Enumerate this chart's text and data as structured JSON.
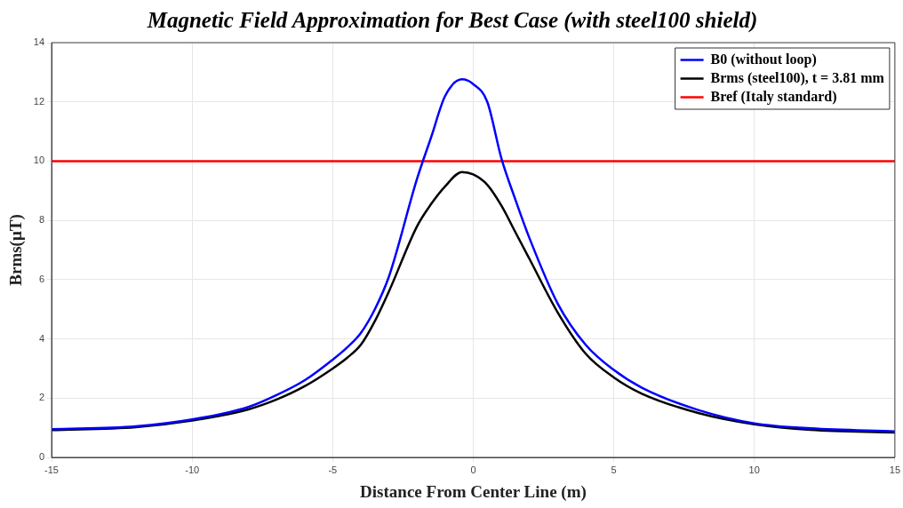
{
  "chart_data": {
    "type": "line",
    "title": "Magnetic Field Approximation for Best Case (with steel100 shield)",
    "xlabel": "Distance From Center Line (m)",
    "ylabel": "Brms(μT)",
    "x": [
      -15,
      -12,
      -10,
      -8,
      -7,
      -6,
      -5,
      -4.5,
      -4,
      -3.5,
      -3,
      -2,
      -1.5,
      -1,
      -0.4,
      0,
      0.5,
      1,
      1.5,
      2,
      3,
      4,
      5,
      6,
      8,
      10,
      12,
      15
    ],
    "series": [
      {
        "name": "B0 (without loop)",
        "color": "#0000ff",
        "values": [
          0.95,
          1.05,
          1.28,
          1.7,
          2.1,
          2.6,
          3.3,
          3.7,
          4.2,
          5.0,
          6.1,
          9.4,
          10.8,
          12.2,
          12.76,
          12.6,
          12.0,
          10.1,
          8.7,
          7.4,
          5.2,
          3.8,
          2.95,
          2.35,
          1.6,
          1.15,
          0.98,
          0.88
        ]
      },
      {
        "name": "Brms (steel100), t = 3.81 mm",
        "color": "#000000",
        "values": [
          0.92,
          1.02,
          1.24,
          1.62,
          1.95,
          2.4,
          3.0,
          3.35,
          3.8,
          4.6,
          5.6,
          7.8,
          8.55,
          9.15,
          9.63,
          9.55,
          9.2,
          8.5,
          7.6,
          6.7,
          4.9,
          3.5,
          2.7,
          2.15,
          1.5,
          1.12,
          0.93,
          0.84
        ]
      },
      {
        "name": "Bref (Italy standard)",
        "color": "#ff0000",
        "x": [
          -15,
          15
        ],
        "values": [
          10,
          10
        ]
      }
    ],
    "xlim": [
      -15,
      15
    ],
    "xticks": [
      -15,
      -10,
      -5,
      0,
      5,
      10,
      15
    ],
    "ylim": [
      0,
      14
    ],
    "yticks": [
      0,
      2,
      4,
      6,
      8,
      10,
      12,
      14
    ],
    "grid": true,
    "legend": "top right",
    "marker": "none",
    "line_style": "solid"
  }
}
